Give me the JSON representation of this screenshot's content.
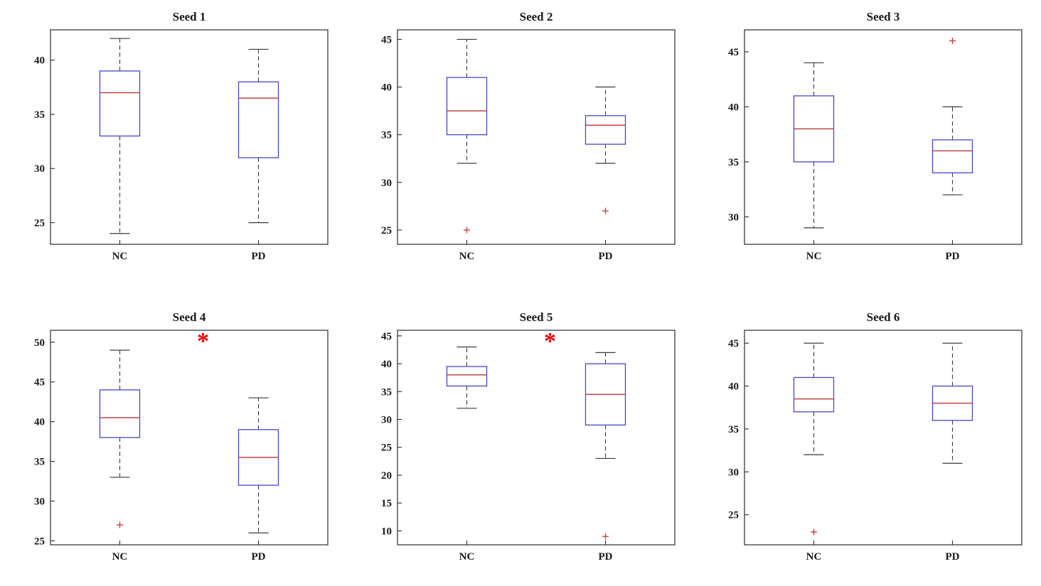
{
  "figure": {
    "description": "Boxplot comparison NC vs PD across six seeds",
    "categories": [
      "NC",
      "PD"
    ],
    "significance_marker": "*"
  },
  "colors": {
    "box": "#4646cc",
    "median": "#c04545",
    "whisker": "#3a3a3a",
    "outlier": "#cc3333",
    "asterisk": "#ee0000",
    "axis": "#2a2a2a",
    "text": "#1a1a1a",
    "background": "#ffffff"
  },
  "chart_data": [
    {
      "type": "boxplot",
      "title": "Seed 1",
      "categories": [
        "NC",
        "PD"
      ],
      "ylim": [
        23,
        42.8
      ],
      "yticks": [
        25,
        30,
        35,
        40
      ],
      "significance": false,
      "series": [
        {
          "label": "NC",
          "whisker_low": 24,
          "q1": 33,
          "median": 37,
          "q3": 39,
          "whisker_high": 42,
          "outliers": []
        },
        {
          "label": "PD",
          "whisker_low": 25,
          "q1": 31,
          "median": 36.5,
          "q3": 38,
          "whisker_high": 41,
          "outliers": []
        }
      ]
    },
    {
      "type": "boxplot",
      "title": "Seed 2",
      "categories": [
        "NC",
        "PD"
      ],
      "ylim": [
        23.5,
        46
      ],
      "yticks": [
        25,
        30,
        35,
        40,
        45
      ],
      "significance": false,
      "series": [
        {
          "label": "NC",
          "whisker_low": 32,
          "q1": 35,
          "median": 37.5,
          "q3": 41,
          "whisker_high": 45,
          "outliers": [
            25
          ]
        },
        {
          "label": "PD",
          "whisker_low": 32,
          "q1": 34,
          "median": 36,
          "q3": 37,
          "whisker_high": 40,
          "outliers": [
            27
          ]
        }
      ]
    },
    {
      "type": "boxplot",
      "title": "Seed 3",
      "categories": [
        "NC",
        "PD"
      ],
      "ylim": [
        27.5,
        47
      ],
      "yticks": [
        30,
        35,
        40,
        45
      ],
      "significance": false,
      "series": [
        {
          "label": "NC",
          "whisker_low": 29,
          "q1": 35,
          "median": 38,
          "q3": 41,
          "whisker_high": 44,
          "outliers": []
        },
        {
          "label": "PD",
          "whisker_low": 32,
          "q1": 34,
          "median": 36,
          "q3": 37,
          "whisker_high": 40,
          "outliers": [
            46
          ]
        }
      ]
    },
    {
      "type": "boxplot",
      "title": "Seed 4",
      "categories": [
        "NC",
        "PD"
      ],
      "ylim": [
        24.5,
        51.5
      ],
      "yticks": [
        25,
        30,
        35,
        40,
        45,
        50
      ],
      "significance": true,
      "series": [
        {
          "label": "NC",
          "whisker_low": 33,
          "q1": 38,
          "median": 40.5,
          "q3": 44,
          "whisker_high": 49,
          "outliers": [
            27
          ]
        },
        {
          "label": "PD",
          "whisker_low": 26,
          "q1": 32,
          "median": 35.5,
          "q3": 39,
          "whisker_high": 43,
          "outliers": []
        }
      ]
    },
    {
      "type": "boxplot",
      "title": "Seed 5",
      "categories": [
        "NC",
        "PD"
      ],
      "ylim": [
        7.5,
        46
      ],
      "yticks": [
        10,
        15,
        20,
        25,
        30,
        35,
        40,
        45
      ],
      "significance": true,
      "series": [
        {
          "label": "NC",
          "whisker_low": 32,
          "q1": 36,
          "median": 38,
          "q3": 39.5,
          "whisker_high": 43,
          "outliers": []
        },
        {
          "label": "PD",
          "whisker_low": 23,
          "q1": 29,
          "median": 34.5,
          "q3": 40,
          "whisker_high": 42,
          "outliers": [
            9
          ]
        }
      ]
    },
    {
      "type": "boxplot",
      "title": "Seed 6",
      "categories": [
        "NC",
        "PD"
      ],
      "ylim": [
        21.5,
        46.5
      ],
      "yticks": [
        25,
        30,
        35,
        40,
        45
      ],
      "significance": false,
      "series": [
        {
          "label": "NC",
          "whisker_low": 32,
          "q1": 37,
          "median": 38.5,
          "q3": 41,
          "whisker_high": 45,
          "outliers": [
            23
          ]
        },
        {
          "label": "PD",
          "whisker_low": 31,
          "q1": 36,
          "median": 38,
          "q3": 40,
          "whisker_high": 45,
          "outliers": []
        }
      ]
    }
  ]
}
